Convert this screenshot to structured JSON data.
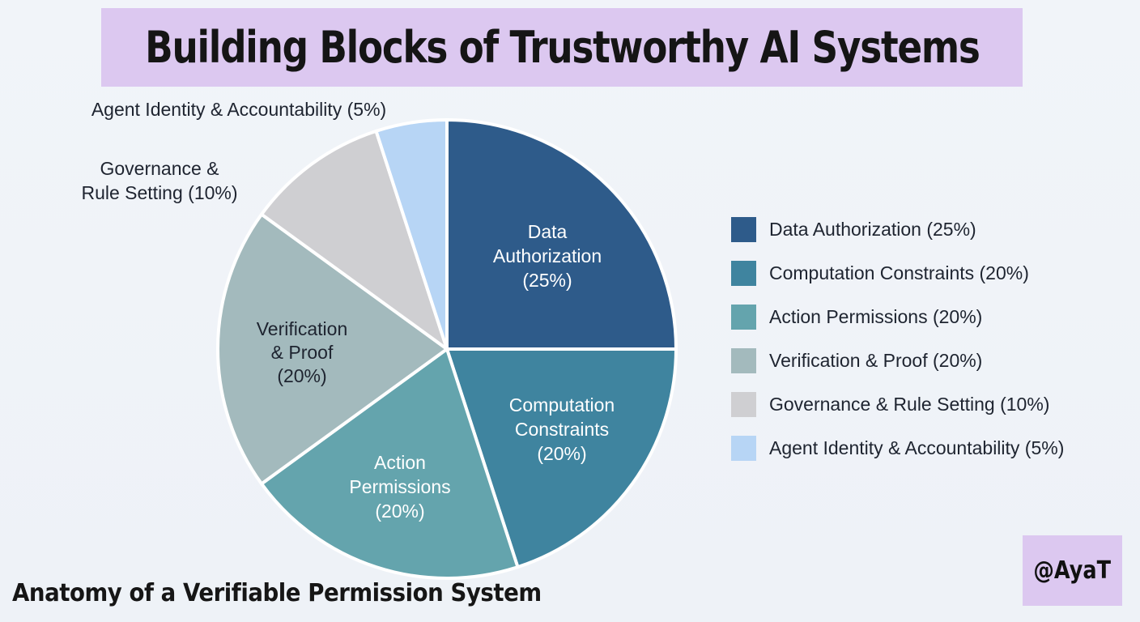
{
  "header": {
    "title": "Building Blocks of Trustworthy AI Systems"
  },
  "footer": {
    "subtitle": "Anatomy of a Verifiable Permission System",
    "watermark": "@AyaT"
  },
  "chart_data": {
    "type": "pie",
    "title": "Building Blocks of Trustworthy AI Systems",
    "legend_placement": "right",
    "slices": [
      {
        "name": "Data Authorization",
        "value": 25,
        "color": "#2e5b8a",
        "label_lines": [
          "Data",
          "Authorization",
          "(25%)"
        ],
        "label_color": "#ffffff",
        "label_position": "inside"
      },
      {
        "name": "Computation Constraints",
        "value": 20,
        "color": "#3f849f",
        "label_lines": [
          "Computation",
          "Constraints",
          "(20%)"
        ],
        "label_color": "#ffffff",
        "label_position": "inside"
      },
      {
        "name": "Action Permissions",
        "value": 20,
        "color": "#64a4ad",
        "label_lines": [
          "Action",
          "Permissions",
          "(20%)"
        ],
        "label_color": "#ffffff",
        "label_position": "inside"
      },
      {
        "name": "Verification & Proof",
        "value": 20,
        "color": "#a3babd",
        "label_lines": [
          "Verification",
          "& Proof",
          "(20%)"
        ],
        "label_color": "#1e2430",
        "label_position": "inside"
      },
      {
        "name": "Governance & Rule Setting",
        "value": 10,
        "color": "#cfcfd2",
        "label_lines": [
          "Governance &",
          "Rule Setting (10%)"
        ],
        "label_color": "#1e2430",
        "label_position": "outside"
      },
      {
        "name": "Agent Identity & Accountability",
        "value": 5,
        "color": "#b7d5f5",
        "label_lines": [
          "Agent Identity & Accountability (5%)"
        ],
        "label_color": "#1e2430",
        "label_position": "outside"
      }
    ],
    "legend": [
      "Data Authorization (25%)",
      "Computation Constraints (20%)",
      "Action Permissions (20%)",
      "Verification & Proof (20%)",
      "Governance & Rule Setting (10%)",
      "Agent Identity & Accountability (5%)"
    ]
  }
}
